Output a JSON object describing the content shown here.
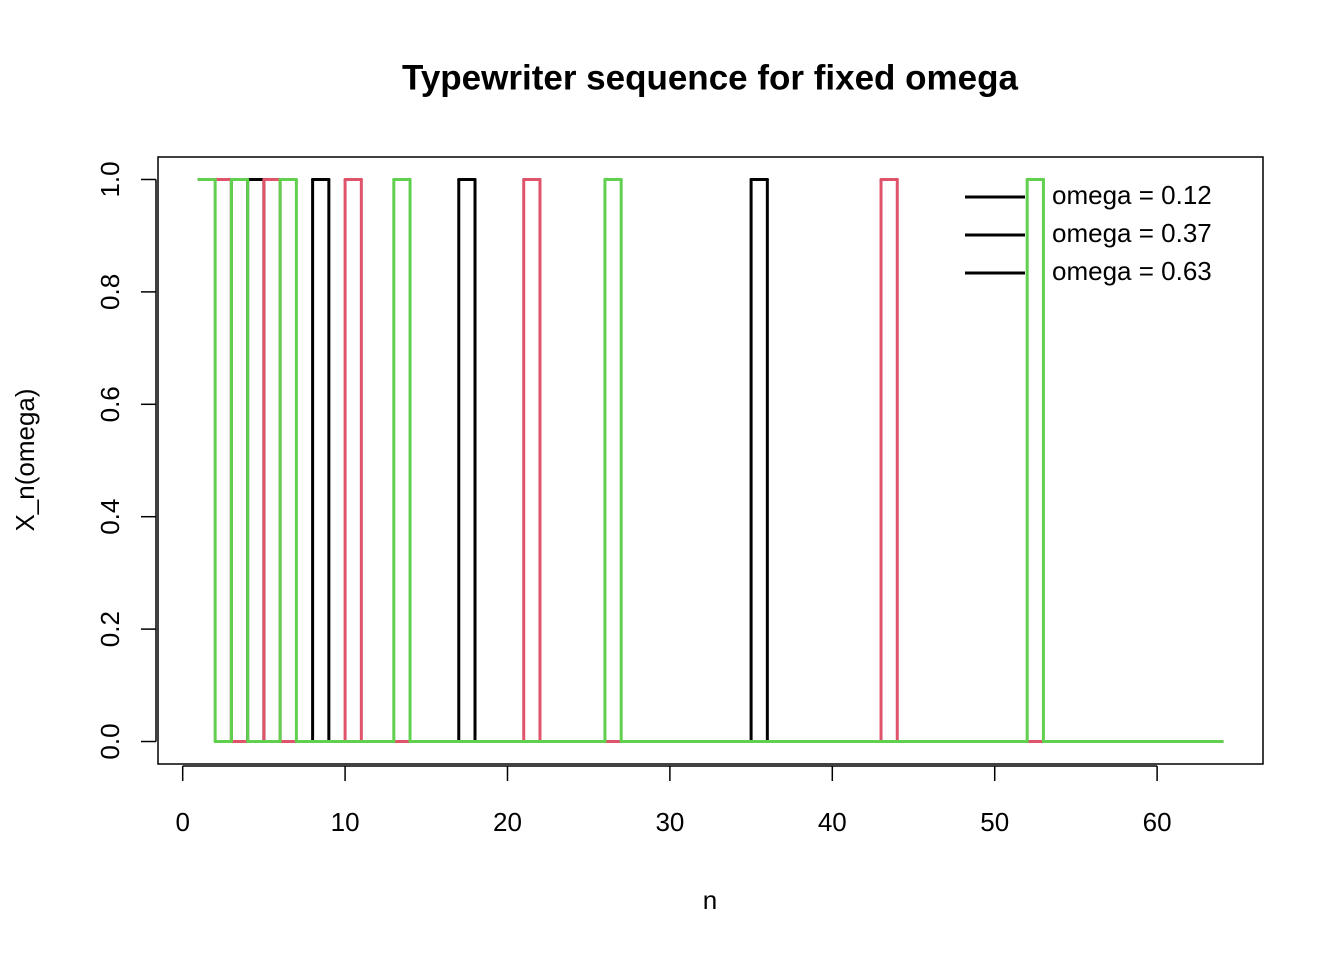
{
  "chart_data": {
    "type": "step",
    "title": "Typewriter sequence for fixed omega",
    "x_label": "n",
    "y_label": "X_n(omega)",
    "x": [
      1,
      2,
      3,
      4,
      5,
      6,
      7,
      8,
      9,
      10,
      11,
      12,
      13,
      14,
      15,
      16,
      17,
      18,
      19,
      20,
      21,
      22,
      23,
      24,
      25,
      26,
      27,
      28,
      29,
      30,
      31,
      32,
      33,
      34,
      35,
      36,
      37,
      38,
      39,
      40,
      41,
      42,
      43,
      44,
      45,
      46,
      47,
      48,
      49,
      50,
      51,
      52,
      53,
      54,
      55,
      56,
      57,
      58,
      59,
      60,
      61,
      62,
      63,
      64
    ],
    "series": [
      {
        "name": "omega = 0.12",
        "color": "#000000",
        "values": [
          1,
          1,
          0,
          1,
          0,
          0,
          0,
          1,
          0,
          0,
          0,
          0,
          0,
          0,
          0,
          0,
          1,
          0,
          0,
          0,
          0,
          0,
          0,
          0,
          0,
          0,
          0,
          0,
          0,
          0,
          0,
          0,
          0,
          0,
          1,
          0,
          0,
          0,
          0,
          0,
          0,
          0,
          0,
          0,
          0,
          0,
          0,
          0,
          0,
          0,
          0,
          0,
          0,
          0,
          0,
          0,
          0,
          0,
          0,
          0,
          0,
          0,
          0,
          0
        ]
      },
      {
        "name": "omega = 0.37",
        "color": "#DF536B",
        "values": [
          1,
          1,
          0,
          0,
          1,
          0,
          0,
          0,
          0,
          1,
          0,
          0,
          0,
          0,
          0,
          0,
          0,
          0,
          0,
          0,
          1,
          0,
          0,
          0,
          0,
          0,
          0,
          0,
          0,
          0,
          0,
          0,
          0,
          0,
          0,
          0,
          0,
          0,
          0,
          0,
          0,
          0,
          1,
          0,
          0,
          0,
          0,
          0,
          0,
          0,
          0,
          0,
          0,
          0,
          0,
          0,
          0,
          0,
          0,
          0,
          0,
          0,
          0,
          0
        ]
      },
      {
        "name": "omega = 0.63",
        "color": "#61D04F",
        "values": [
          1,
          0,
          1,
          0,
          0,
          1,
          0,
          0,
          0,
          0,
          0,
          0,
          1,
          0,
          0,
          0,
          0,
          0,
          0,
          0,
          0,
          0,
          0,
          0,
          0,
          1,
          0,
          0,
          0,
          0,
          0,
          0,
          0,
          0,
          0,
          0,
          0,
          0,
          0,
          0,
          0,
          0,
          0,
          0,
          0,
          0,
          0,
          0,
          0,
          0,
          0,
          1,
          0,
          0,
          0,
          0,
          0,
          0,
          0,
          0,
          0,
          0,
          0,
          0
        ]
      }
    ],
    "xlim": [
      -1.52,
      66.52
    ],
    "ylim": [
      -0.04,
      1.04
    ],
    "xticks": [
      0,
      10,
      20,
      30,
      40,
      50,
      60
    ],
    "yticks": [
      {
        "value": 0,
        "label": "0.0"
      },
      {
        "value": 0.2,
        "label": "0.2"
      },
      {
        "value": 0.4,
        "label": "0.4"
      },
      {
        "value": 0.6,
        "label": "0.6"
      },
      {
        "value": 0.8,
        "label": "0.8"
      },
      {
        "value": 1,
        "label": "1.0"
      }
    ],
    "legend": "topright",
    "legend_line_color": "#000000"
  }
}
